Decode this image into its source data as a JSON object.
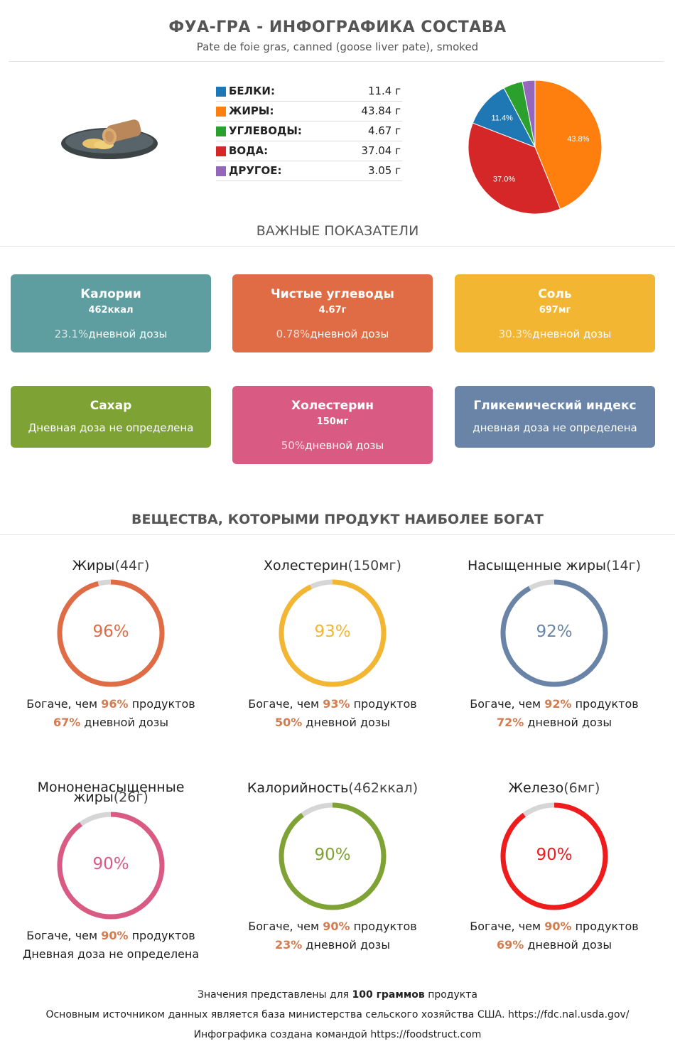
{
  "header": {
    "title": "ФУА-ГРА - ИНФОГРАФИКА СОСТАВА",
    "subtitle": "Pate de foie gras, canned (goose liver pate), smoked"
  },
  "macros": [
    {
      "name": "БЕЛКИ:",
      "value": "11.4 г",
      "color": "#1f77b4"
    },
    {
      "name": "ЖИРЫ:",
      "value": "43.84 г",
      "color": "#ff7f0e"
    },
    {
      "name": "УГЛЕВОДЫ:",
      "value": "4.67 г",
      "color": "#2ca02c"
    },
    {
      "name": "ВОДА:",
      "value": "37.04 г",
      "color": "#d62728"
    },
    {
      "name": "ДРУГОЕ:",
      "value": "3.05 г",
      "color": "#9467bd"
    }
  ],
  "chart_data": {
    "type": "pie",
    "slices": [
      {
        "name": "ЖИРЫ",
        "value": 43.84,
        "label": "43.8%",
        "color": "#ff7f0e"
      },
      {
        "name": "ВОДА",
        "value": 37.04,
        "label": "37.0%",
        "color": "#d62728"
      },
      {
        "name": "БЕЛКИ",
        "value": 11.4,
        "label": "11.4%",
        "color": "#1f77b4"
      },
      {
        "name": "УГЛЕВОДЫ",
        "value": 4.67,
        "label": "",
        "color": "#2ca02c"
      },
      {
        "name": "ДРУГОЕ",
        "value": 3.05,
        "label": "",
        "color": "#9467bd"
      }
    ]
  },
  "important": {
    "title": "ВАЖНЫЕ ПОКАЗАТЕЛИ",
    "cards": [
      {
        "title": "Калории",
        "value": "462ккал",
        "dose_pct": "23.1%",
        "dose_text": "дневной дозы",
        "color": "#5f9ea0"
      },
      {
        "title": "Чистые углеводы",
        "value": "4.67г",
        "dose_pct": "0.78%",
        "dose_text": "дневной дозы",
        "color": "#e06c45"
      },
      {
        "title": "Соль",
        "value": "697мг",
        "dose_pct": "30.3%",
        "dose_text": "дневной дозы",
        "color": "#f2b632"
      },
      {
        "title": "Сахар",
        "value": "",
        "dose_pct": "",
        "dose_text": "Дневная доза не определена",
        "color": "#7ea233"
      },
      {
        "title": "Холестерин",
        "value": "150мг",
        "dose_pct": "50%",
        "dose_text": "дневной дозы",
        "color": "#d95b84"
      },
      {
        "title": "Гликемический индекс",
        "value": "",
        "dose_pct": "",
        "dose_text": "дневная доза не определена",
        "color": "#6a84a8"
      }
    ]
  },
  "rich": {
    "title": "ВЕЩЕСТВА, КОТОРЫМИ ПРОДУКТ НАИБОЛЕЕ БОГАТ",
    "richer_prefix": "Богаче, чем",
    "richer_suffix": "продуктов",
    "dose_suffix": "дневной дозы",
    "items": [
      {
        "name": "Жиры",
        "amount": "(44г)",
        "percent": 96,
        "percent_label": "96%",
        "dose": "67%",
        "dose_text": "",
        "color": "#e06c45"
      },
      {
        "name": "Холестерин",
        "amount": "(150мг)",
        "percent": 93,
        "percent_label": "93%",
        "dose": "50%",
        "dose_text": "",
        "color": "#f2b632"
      },
      {
        "name": "Насыщенные жиры",
        "amount": "(14г)",
        "percent": 92,
        "percent_label": "92%",
        "dose": "72%",
        "dose_text": "",
        "color": "#6a84a8"
      },
      {
        "name": "Мононенасыщенные жиры",
        "amount": "(26г)",
        "percent": 90,
        "percent_label": "90%",
        "dose": "",
        "dose_text": "Дневная доза не определена",
        "color": "#d95b84"
      },
      {
        "name": "Калорийность",
        "amount": "(462ккал)",
        "percent": 90,
        "percent_label": "90%",
        "dose": "23%",
        "dose_text": "",
        "color": "#7ea233"
      },
      {
        "name": "Железо",
        "amount": "(6мг)",
        "percent": 90,
        "percent_label": "90%",
        "dose": "69%",
        "dose_text": "",
        "color": "#ee1c1c"
      }
    ]
  },
  "footer": {
    "line1_prefix": "Значения представлены для",
    "line1_bold": "100 граммов",
    "line1_suffix": "продукта",
    "line2": "Основным источником данных является база министерства сельского хозяйства США. https://fdc.nal.usda.gov/",
    "line3": "Инфографика создана командой https://foodstruct.com"
  }
}
